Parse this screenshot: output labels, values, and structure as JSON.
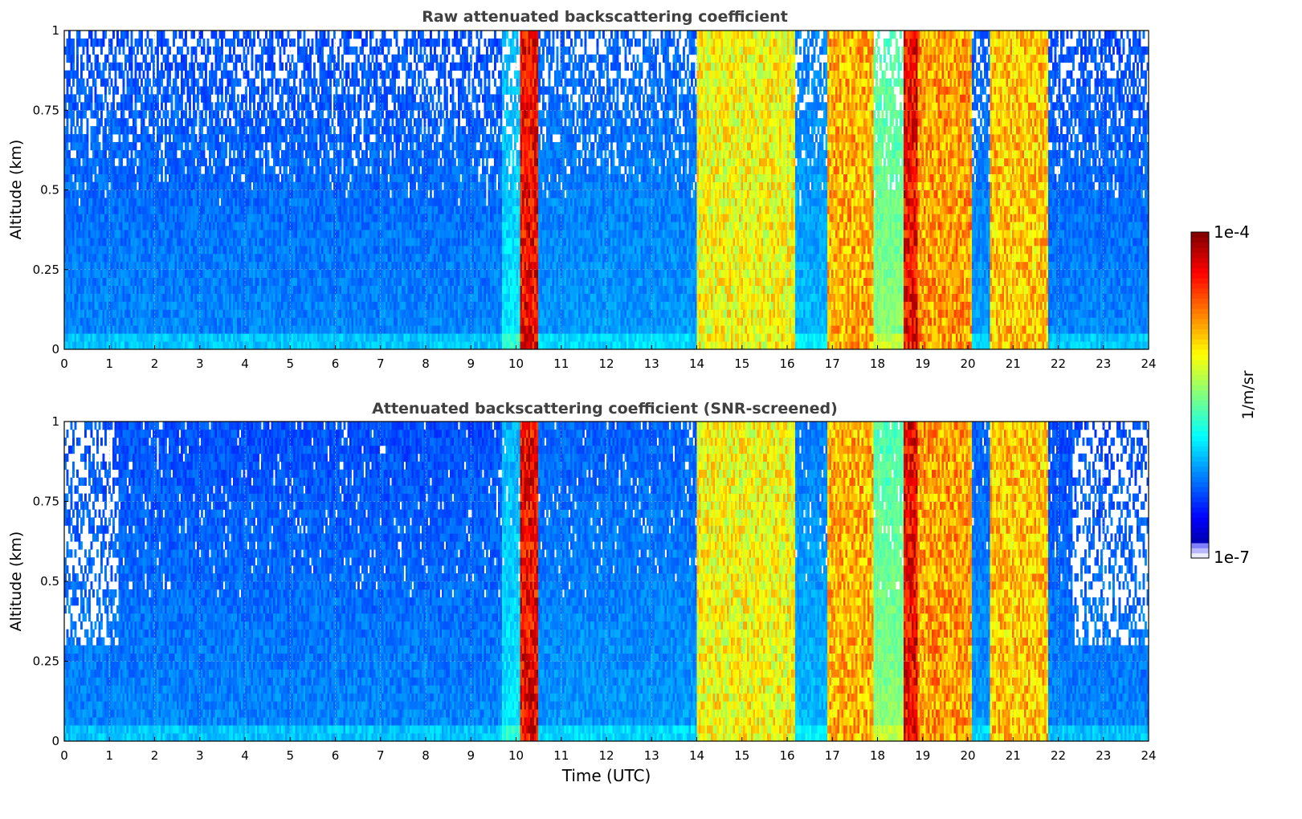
{
  "chart_data": [
    {
      "type": "heatmap",
      "title": "Raw attenuated backscattering coefficient",
      "xlabel": "",
      "ylabel": "Altitude (km)",
      "xlim": [
        0,
        24
      ],
      "ylim": [
        0,
        1
      ],
      "x_ticks": [
        "0",
        "1",
        "2",
        "3",
        "4",
        "5",
        "6",
        "7",
        "8",
        "9",
        "10",
        "11",
        "12",
        "13",
        "14",
        "15",
        "16",
        "17",
        "18",
        "19",
        "20",
        "21",
        "22",
        "23",
        "24"
      ],
      "y_ticks": [
        "0",
        "0.25",
        "0.5",
        "0.75",
        "1"
      ],
      "grid": true,
      "screened": false,
      "segments": [
        {
          "start": 0.0,
          "end": 9.7,
          "level": 0.2,
          "note_level": 0.12
        },
        {
          "start": 9.7,
          "end": 10.1,
          "level": 0.3
        },
        {
          "start": 10.1,
          "end": 10.5,
          "level": 0.88
        },
        {
          "start": 10.5,
          "end": 14.0,
          "level": 0.22
        },
        {
          "start": 14.0,
          "end": 16.2,
          "level": 0.62
        },
        {
          "start": 16.2,
          "end": 16.9,
          "level": 0.25
        },
        {
          "start": 16.9,
          "end": 17.9,
          "level": 0.7
        },
        {
          "start": 17.9,
          "end": 18.6,
          "level": 0.45
        },
        {
          "start": 18.6,
          "end": 18.9,
          "level": 0.88
        },
        {
          "start": 18.9,
          "end": 20.1,
          "level": 0.72
        },
        {
          "start": 20.1,
          "end": 20.5,
          "level": 0.22
        },
        {
          "start": 20.5,
          "end": 21.8,
          "level": 0.68
        },
        {
          "start": 21.8,
          "end": 24.0,
          "level": 0.2
        }
      ]
    },
    {
      "type": "heatmap",
      "title": "Attenuated backscattering coefficient (SNR-screened)",
      "xlabel": "Time (UTC)",
      "ylabel": "Altitude (km)",
      "xlim": [
        0,
        24
      ],
      "ylim": [
        0,
        1
      ],
      "x_ticks": [
        "0",
        "1",
        "2",
        "3",
        "4",
        "5",
        "6",
        "7",
        "8",
        "9",
        "10",
        "11",
        "12",
        "13",
        "14",
        "15",
        "16",
        "17",
        "18",
        "19",
        "20",
        "21",
        "22",
        "23",
        "24"
      ],
      "y_ticks": [
        "0",
        "0.25",
        "0.5",
        "0.75",
        "1"
      ],
      "grid": true,
      "screened": true,
      "segments": [
        {
          "start": 0.0,
          "end": 9.7,
          "level": 0.2
        },
        {
          "start": 9.7,
          "end": 10.1,
          "level": 0.3
        },
        {
          "start": 10.1,
          "end": 10.5,
          "level": 0.88
        },
        {
          "start": 10.5,
          "end": 14.0,
          "level": 0.22
        },
        {
          "start": 14.0,
          "end": 16.2,
          "level": 0.62
        },
        {
          "start": 16.2,
          "end": 16.9,
          "level": 0.25
        },
        {
          "start": 16.9,
          "end": 17.9,
          "level": 0.7
        },
        {
          "start": 17.9,
          "end": 18.6,
          "level": 0.45
        },
        {
          "start": 18.6,
          "end": 18.9,
          "level": 0.88
        },
        {
          "start": 18.9,
          "end": 20.1,
          "level": 0.72
        },
        {
          "start": 20.1,
          "end": 20.5,
          "level": 0.22
        },
        {
          "start": 20.5,
          "end": 21.8,
          "level": 0.68
        },
        {
          "start": 21.8,
          "end": 24.0,
          "level": 0.2
        }
      ]
    }
  ],
  "colorbar": {
    "label": "1/m/sr",
    "max_label": "1e-4",
    "min_label": "1e-7",
    "colormap": "jet"
  }
}
